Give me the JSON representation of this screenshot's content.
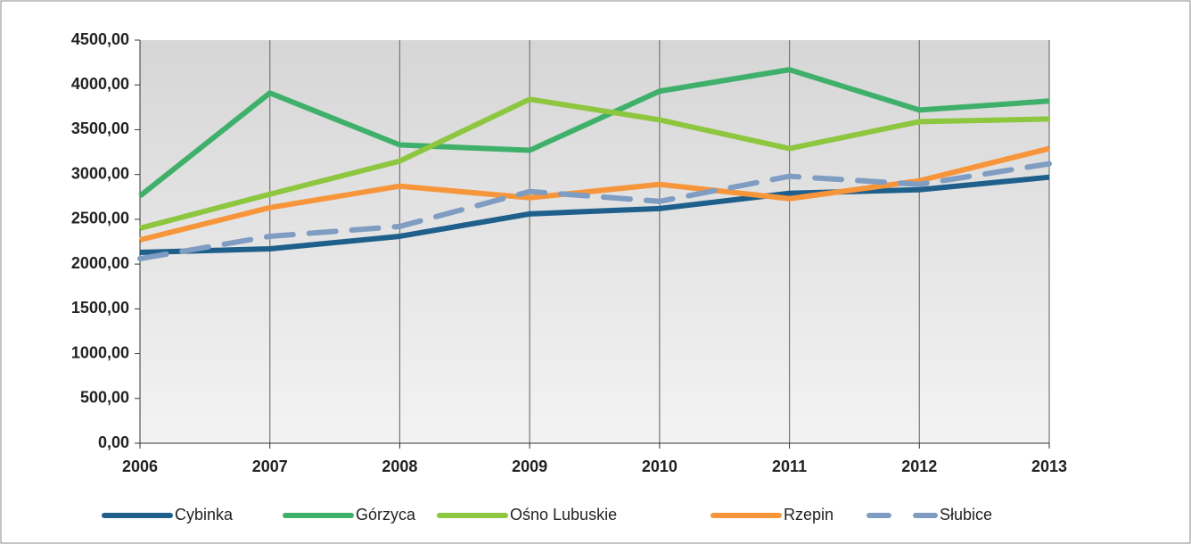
{
  "chart_data": {
    "type": "line",
    "categories": [
      "2006",
      "2007",
      "2008",
      "2009",
      "2010",
      "2011",
      "2012",
      "2013"
    ],
    "series": [
      {
        "name": "Cybinka",
        "color": "#1f5f8b",
        "values": [
          2130,
          2170,
          2310,
          2560,
          2620,
          2790,
          2830,
          2970
        ]
      },
      {
        "name": "Górzyca",
        "color": "#3fb06a",
        "values": [
          2760,
          3910,
          3330,
          3270,
          3930,
          4170,
          3720,
          3820
        ]
      },
      {
        "name": "Ośno Lubuskie",
        "color": "#8dc63f",
        "values": [
          2400,
          2780,
          3150,
          3840,
          3610,
          3290,
          3590,
          3620
        ]
      },
      {
        "name": "Rzepin",
        "color": "#f7953b",
        "values": [
          2270,
          2630,
          2870,
          2740,
          2890,
          2730,
          2930,
          3290
        ]
      },
      {
        "name": "Słubice",
        "color": "#7f9cc2",
        "dashed": true,
        "values": [
          2060,
          2310,
          2420,
          2810,
          2700,
          2980,
          2890,
          3120
        ]
      }
    ],
    "ylim": [
      0,
      4500
    ],
    "yticks": [
      {
        "value": 0,
        "label": "0,00"
      },
      {
        "value": 500,
        "label": "500,00"
      },
      {
        "value": 1000,
        "label": "1000,00"
      },
      {
        "value": 1500,
        "label": "1500,00"
      },
      {
        "value": 2000,
        "label": "2000,00"
      },
      {
        "value": 2500,
        "label": "2500,00"
      },
      {
        "value": 3000,
        "label": "3000,00"
      },
      {
        "value": 3500,
        "label": "3500,00"
      },
      {
        "value": 4000,
        "label": "4000,00"
      },
      {
        "value": 4500,
        "label": "4500,00"
      }
    ],
    "grid": "x",
    "legend": "bottom"
  }
}
